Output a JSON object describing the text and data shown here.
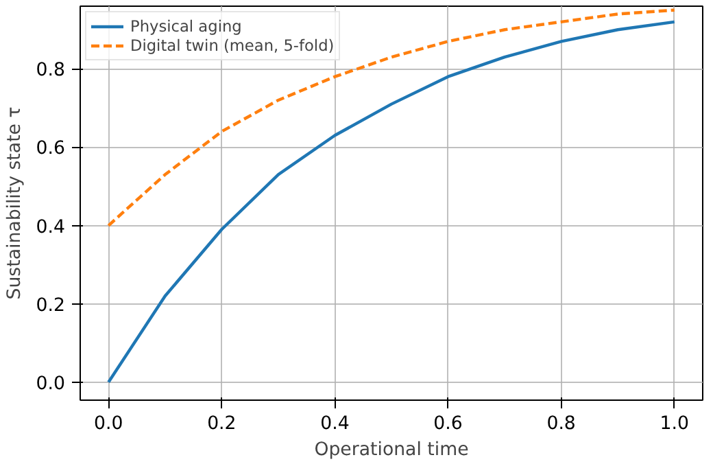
{
  "chart_data": {
    "type": "line",
    "xlabel": "Operational time",
    "ylabel": "Sustainability state τ",
    "x": [
      0,
      0.1,
      0.2,
      0.3,
      0.4,
      0.5,
      0.6,
      0.7,
      0.8,
      0.9,
      1.0
    ],
    "series": [
      {
        "name": "Physical aging",
        "color": "#1f77b4",
        "line_style": "solid",
        "values": [
          0,
          0.22,
          0.39,
          0.53,
          0.63,
          0.71,
          0.78,
          0.83,
          0.87,
          0.9,
          0.92
        ]
      },
      {
        "name": "Digital twin (mean, 5-fold)",
        "color": "#ff7f0e",
        "line_style": "dashed",
        "values": [
          0.4,
          0.53,
          0.64,
          0.72,
          0.78,
          0.83,
          0.87,
          0.9,
          0.92,
          0.94,
          0.95
        ]
      }
    ],
    "xlim": [
      -0.05,
      1.05
    ],
    "ylim": [
      -0.046,
      0.96
    ],
    "xticks": [
      {
        "value": 0,
        "label": "0.0"
      },
      {
        "value": 0.2,
        "label": "0.2"
      },
      {
        "value": 0.4,
        "label": "0.4"
      },
      {
        "value": 0.6,
        "label": "0.6"
      },
      {
        "value": 0.8,
        "label": "0.8"
      },
      {
        "value": 1.0,
        "label": "1.0"
      }
    ],
    "yticks": [
      {
        "value": 0,
        "label": "0.0"
      },
      {
        "value": 0.2,
        "label": "0.2"
      },
      {
        "value": 0.4,
        "label": "0.4"
      },
      {
        "value": 0.6,
        "label": "0.6"
      },
      {
        "value": 0.8,
        "label": "0.8"
      }
    ],
    "grid": true,
    "legend": "top left"
  }
}
